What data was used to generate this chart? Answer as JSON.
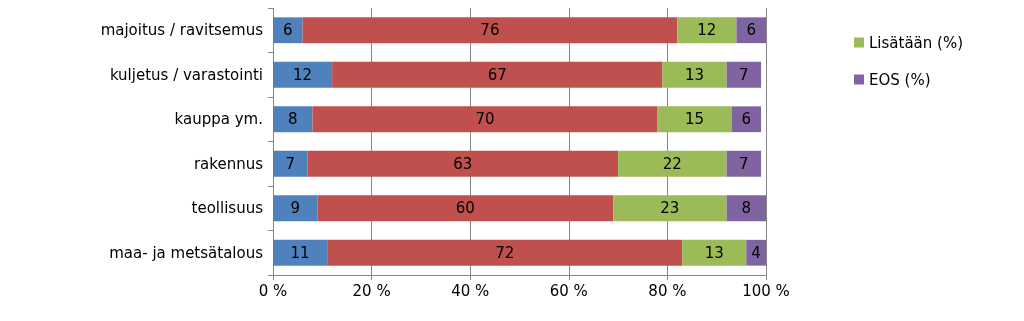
{
  "chart_data": {
    "type": "bar",
    "orientation": "horizontal",
    "stacked": true,
    "data_labels": true,
    "grid": "x",
    "legend": "right",
    "categories": [
      "majoitus / ravitsemus",
      "kuljetus / varastointi",
      "kauppa ym.",
      "rakennus",
      "teollisuus",
      "maa- ja metsätalous"
    ],
    "series": [
      {
        "color": "#4f81bd",
        "values": [
          6,
          12,
          8,
          7,
          9,
          11
        ]
      },
      {
        "color": "#c0504d",
        "values": [
          76,
          67,
          70,
          63,
          60,
          72
        ]
      },
      {
        "name": "Lisätään (%)",
        "color": "#9bbb59",
        "values": [
          12,
          13,
          15,
          22,
          23,
          13
        ]
      },
      {
        "name": "EOS (%)",
        "color": "#8064a2",
        "values": [
          6,
          7,
          6,
          7,
          8,
          4
        ]
      }
    ],
    "xlim": [
      0,
      100
    ],
    "xticks": [
      {
        "value": 0,
        "label": "0 %"
      },
      {
        "value": 20,
        "label": "20 %"
      },
      {
        "value": 40,
        "label": "40 %"
      },
      {
        "value": 60,
        "label": "60 %"
      },
      {
        "value": 80,
        "label": "80 %"
      },
      {
        "value": 100,
        "label": "100 %"
      }
    ]
  }
}
